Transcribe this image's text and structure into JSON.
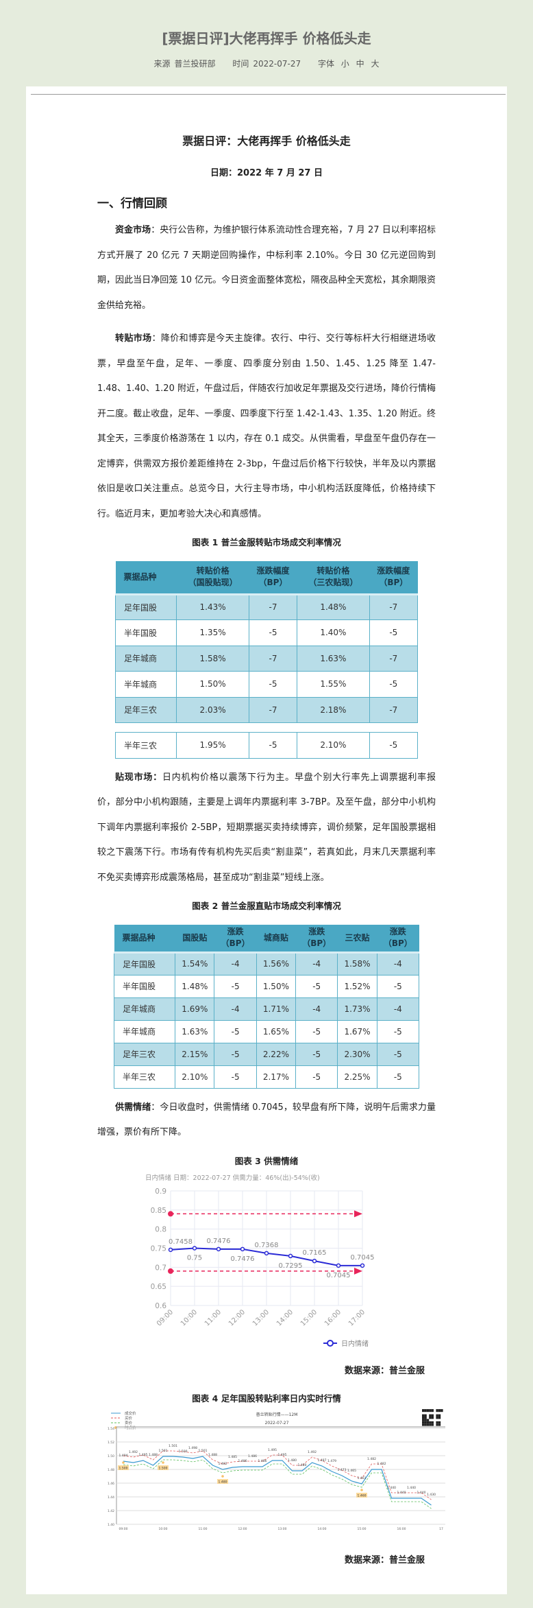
{
  "header": {
    "title": "[票据日评]大佬再挥手 价格低头走",
    "source_label": "来源",
    "source": "普兰投研部",
    "time_label": "时间",
    "time": "2022-07-27",
    "font_label": "字体",
    "font_small": "小",
    "font_medium": "中",
    "font_large": "大"
  },
  "article": {
    "title": "票据日评：大佬再挥手  价格低头走",
    "date": "日期：2022 年 7 月 27 日",
    "section1": "一、行情回顾",
    "p1_lead": "资金市场",
    "p1": "：央行公告称，为维护银行体系流动性合理充裕，7 月 27 日以利率招标方式开展了 20 亿元 7 天期逆回购操作，中标利率 2.10%。今日 30 亿元逆回购到期，因此当日净回笼 10 亿元。今日资金面整体宽松，隔夜品种全天宽松，其余期限资金供给充裕。",
    "p2_lead": "转贴市场",
    "p2": "：降价和博弈是今天主旋律。农行、中行、交行等标杆大行相继进场收票，早盘至午盘，足年、一季度、四季度分别由 1.50、1.45、1.25 降至 1.47-1.48、1.40、1.20 附近，午盘过后，伴随农行加收足年票据及交行进场，降价行情梅开二度。截止收盘，足年、一季度、四季度下行至 1.42-1.43、1.35、1.20 附近。终其全天，三季度价格游荡在 1 以内，存在 0.1 成交。从供需看，早盘至午盘仍存在一定博弈，供需双方报价差距维持在 2-3bp，午盘过后价格下行较快，半年及以内票据依旧是收口关注重点。总览今日，大行主导市场，中小机构活跃度降低，价格持续下行。临近月末，更加考验大决心和真感情。",
    "p3_lead": "贴现市场：",
    "p3": "日内机构价格以震荡下行为主。早盘个别大行率先上调票据利率报价，部分中小机构跟随，主要是上调年内票据利率 3-7BP。及至午盘，部分中小机构下调年内票据利率报价 2-5BP，短期票据买卖持续博弈，调价频繁，足年国股票据相较之下震荡下行。市场有传有机构先买后卖“割韭菜”，若真如此，月末几天票据利率不免买卖博弈形成震荡格局，甚至成功“割韭菜”短线上涨。",
    "p4_lead": "供需情绪",
    "p4": "：今日收盘时，供需情绪 0.7045，较早盘有所下降，说明午后需求力量增强，票价有所下降。",
    "data_source": "数据来源：普兰金服"
  },
  "table1": {
    "caption": "图表 1  普兰金服转贴市场成交利率情况",
    "headers": [
      [
        "票据品种"
      ],
      [
        "转贴价格",
        "（国股贴现）"
      ],
      [
        "涨跌幅度",
        "（BP）"
      ],
      [
        "转贴价格",
        "（三农贴现）"
      ],
      [
        "涨跌幅度",
        "（BP）"
      ]
    ],
    "rows": [
      [
        "足年国股",
        "1.43%",
        "-7",
        "1.48%",
        "-7"
      ],
      [
        "半年国股",
        "1.35%",
        "-5",
        "1.40%",
        "-5"
      ],
      [
        "足年城商",
        "1.58%",
        "-7",
        "1.63%",
        "-7"
      ],
      [
        "半年城商",
        "1.50%",
        "-5",
        "1.55%",
        "-5"
      ],
      [
        "足年三农",
        "2.03%",
        "-7",
        "2.18%",
        "-7"
      ]
    ],
    "extra_row": [
      "半年三农",
      "1.95%",
      "-5",
      "2.10%",
      "-5"
    ],
    "colors": {
      "header": "#4aa8c4",
      "stripe": "#b8dde8",
      "border": "#5ab0c8"
    }
  },
  "table2": {
    "caption": "图表 2  普兰金服直贴市场成交利率情况",
    "headers": [
      [
        "票据品种"
      ],
      [
        "国股贴"
      ],
      [
        "涨跌",
        "（BP）"
      ],
      [
        "城商贴"
      ],
      [
        "涨跌",
        "（BP）"
      ],
      [
        "三农贴"
      ],
      [
        "涨跌",
        "（BP）"
      ]
    ],
    "rows": [
      [
        "足年国股",
        "1.54%",
        "-4",
        "1.56%",
        "-4",
        "1.58%",
        "-4"
      ],
      [
        "半年国股",
        "1.48%",
        "-5",
        "1.50%",
        "-5",
        "1.52%",
        "-5"
      ],
      [
        "足年城商",
        "1.69%",
        "-4",
        "1.71%",
        "-4",
        "1.73%",
        "-4"
      ],
      [
        "半年城商",
        "1.63%",
        "-5",
        "1.65%",
        "-5",
        "1.67%",
        "-5"
      ],
      [
        "足年三农",
        "2.15%",
        "-5",
        "2.22%",
        "-5",
        "2.30%",
        "-5"
      ],
      [
        "半年三农",
        "2.10%",
        "-5",
        "2.17%",
        "-5",
        "2.25%",
        "-5"
      ]
    ]
  },
  "chart_data": [
    {
      "type": "line",
      "caption": "图表 3  供需情绪",
      "subtitle": "日内情绪 日期：2022-07-27 供需力量：46%(出)-54%(收)",
      "categories": [
        "09:00",
        "10:00",
        "11:00",
        "12:00",
        "13:00",
        "14:00",
        "15:00",
        "16:00",
        "17:00"
      ],
      "series": [
        {
          "name": "日内情绪",
          "values": [
            0.7458,
            0.75,
            0.7476,
            0.7476,
            0.7368,
            0.7295,
            0.7165,
            0.7045,
            0.7045
          ],
          "color": "#2b2bd6"
        }
      ],
      "reference_lines": [
        {
          "value": 0.84,
          "color": "#e8245a",
          "style": "dashed"
        },
        {
          "value": 0.69,
          "color": "#e8245a",
          "style": "dashed"
        }
      ],
      "ylim": [
        0.6,
        0.9
      ],
      "yticks": [
        "0.6",
        "0.65",
        "0.7",
        "0.75",
        "0.8",
        "0.85",
        "0.9"
      ],
      "grid": true,
      "legend": "bottom-right"
    },
    {
      "type": "line",
      "caption": "图表 4  足年国股转贴利率日内实时行情",
      "title": "普兰转贴行情——12M",
      "subtitle": "2022-07-27",
      "watermark": "普兰数据",
      "xticks": [
        "09:00",
        "10:00",
        "11:00",
        "12:00",
        "13:00",
        "14:00",
        "15:00",
        "16:00",
        "17"
      ],
      "ylim": [
        1.4,
        1.54
      ],
      "yticks": [
        "1.40",
        "1.42",
        "1.44",
        "1.46",
        "1.48",
        "1.50",
        "1.52",
        "1.54"
      ],
      "legend_items": [
        {
          "name": "成交价",
          "color": "#3b9ad1"
        },
        {
          "name": "买价",
          "color": "#e05a5a"
        },
        {
          "name": "卖价",
          "color": "#5cbf5c"
        },
        {
          "name": "时点价",
          "color": "#f5c26b"
        }
      ],
      "trade_labels": [
        1.494,
        1.492,
        1.495,
        1.488,
        1.501,
        1.501,
        1.5,
        1.498,
        1.501,
        1.488,
        1.482,
        1.485,
        1.486,
        1.486,
        1.486,
        1.495,
        1.495,
        1.48,
        1.48,
        1.492,
        1.487,
        1.479,
        1.473,
        1.465,
        1.461,
        1.482,
        1.482,
        1.44,
        1.44,
        1.44,
        1.44,
        1.43
      ],
      "spot_prices": [
        {
          "time": "09:00",
          "value": "1.500"
        },
        {
          "time": "10:00",
          "value": "1.500"
        },
        {
          "time": "11:30",
          "value": "1.480"
        },
        {
          "time": "15:00",
          "value": "1.460"
        }
      ],
      "legend": "top-left"
    }
  ]
}
